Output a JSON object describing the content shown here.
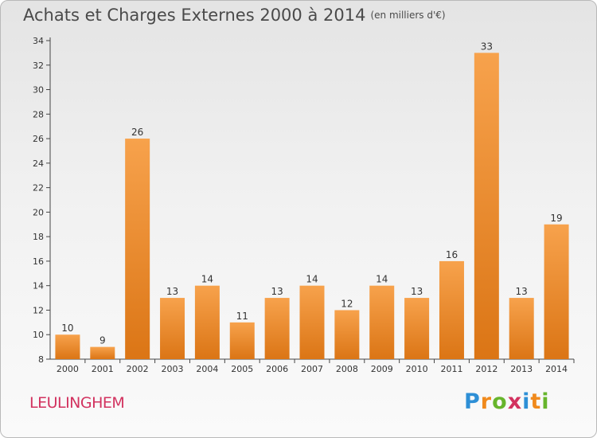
{
  "header": {
    "title": "Achats et Charges Externes 2000 à 2014",
    "subtitle": "(en milliers d'€)"
  },
  "footer": {
    "commune": "LEULINGHEM",
    "logo_text": "Proxiti"
  },
  "colors": {
    "bar_top": "#f7a24c",
    "bar_bottom": "#db7515",
    "title": "#4a4a4a",
    "commune": "#d2325f"
  },
  "chart_data": {
    "type": "bar",
    "title": "Achats et Charges Externes 2000 à 2014",
    "subtitle": "(en milliers d'€)",
    "xlabel": "",
    "ylabel": "",
    "categories": [
      "2000",
      "2001",
      "2002",
      "2003",
      "2004",
      "2005",
      "2006",
      "2007",
      "2008",
      "2009",
      "2010",
      "2011",
      "2012",
      "2013",
      "2014"
    ],
    "values": [
      10,
      9,
      26,
      13,
      14,
      11,
      13,
      14,
      12,
      14,
      13,
      16,
      33,
      13,
      19
    ],
    "data_labels": [
      "10",
      "9",
      "26",
      "13",
      "14",
      "11",
      "13",
      "14",
      "12",
      "14",
      "13",
      "16",
      "33",
      "13",
      "19"
    ],
    "ylim": [
      8,
      34
    ],
    "yticks": [
      8,
      10,
      12,
      14,
      16,
      18,
      20,
      22,
      24,
      26,
      28,
      30,
      32,
      34
    ],
    "grid": false,
    "legend": "none"
  }
}
